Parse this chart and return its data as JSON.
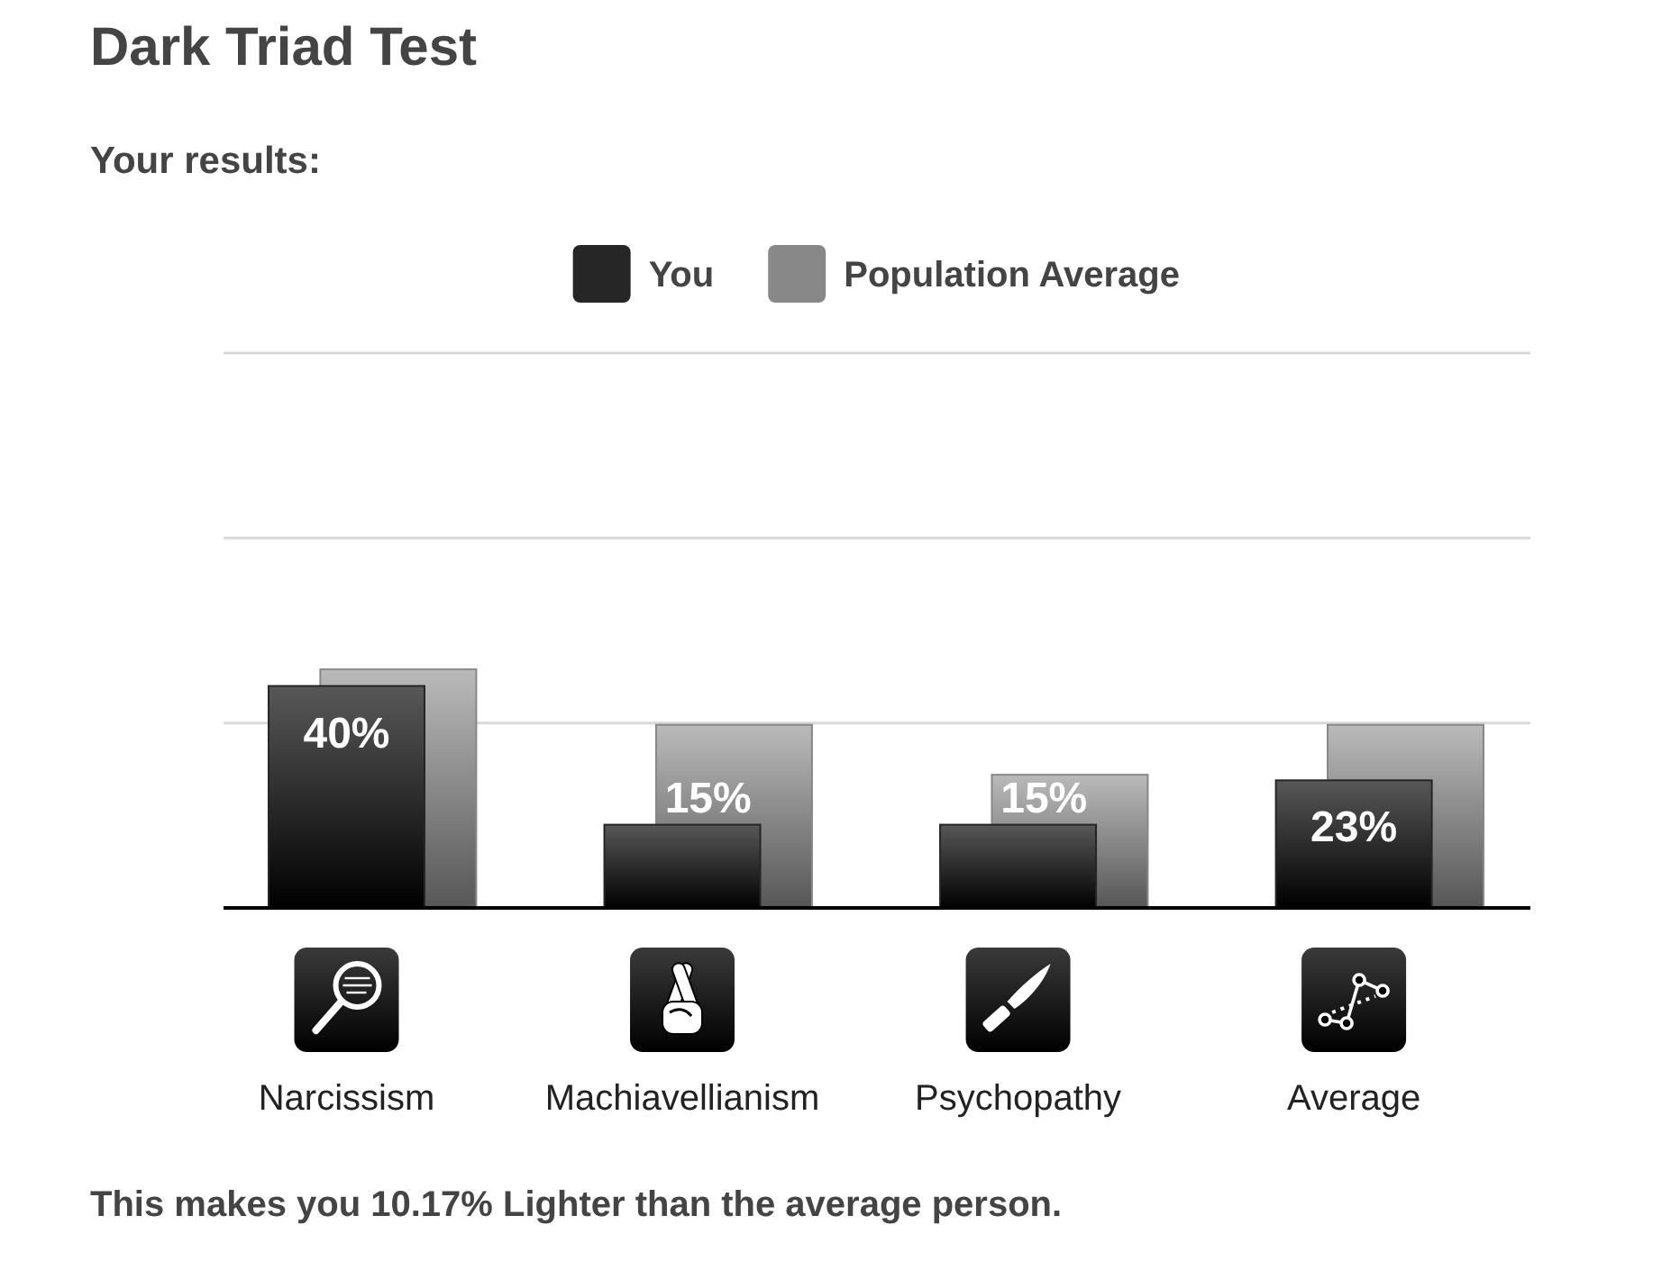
{
  "chart_data": {
    "type": "bar",
    "title": "Dark Triad Test",
    "subtitle": "Your results:",
    "categories": [
      "Narcissism",
      "Machiavellianism",
      "Psychopathy",
      "Average"
    ],
    "series": [
      {
        "name": "You",
        "color": "#262626",
        "values": [
          40,
          15,
          15,
          23
        ],
        "value_labels": [
          "40%",
          "15%",
          "15%",
          "23%"
        ]
      },
      {
        "name": "Population Average",
        "color": "#888888",
        "values": [
          43,
          33,
          24,
          33
        ]
      }
    ],
    "ylim": [
      0,
      100
    ],
    "yticks": [
      {
        "value": 33.3,
        "label": null
      },
      {
        "value": 66.7,
        "label": null
      },
      {
        "value": 100,
        "label": null
      }
    ],
    "grid": "y",
    "legend": "top",
    "tick_labels": "x",
    "annotations": [
      "This makes you 10.17% Lighter than the average person."
    ]
  }
}
